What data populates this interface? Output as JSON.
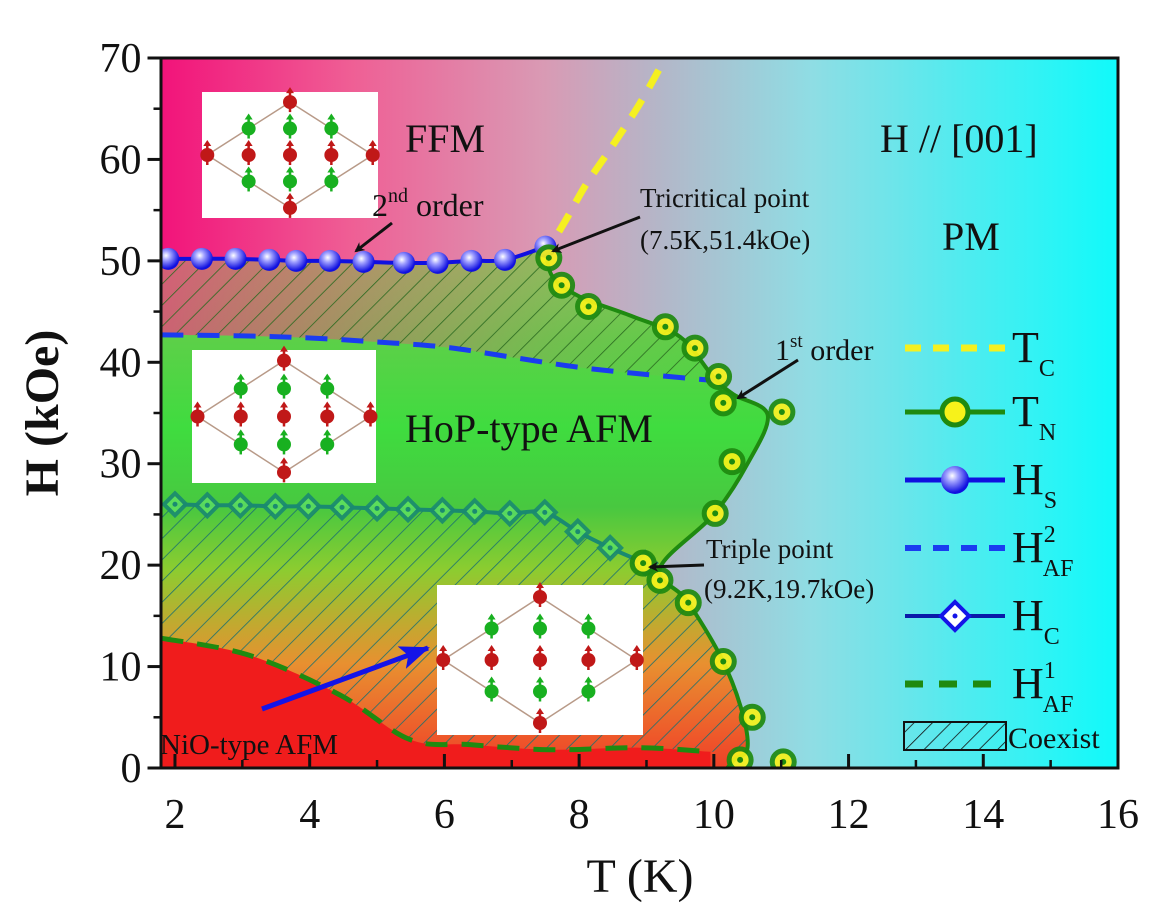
{
  "chart_data": {
    "type": "line",
    "xlabel": "T (K)",
    "ylabel": "H (kOe)",
    "xlim": [
      1.8,
      16
    ],
    "ylim": [
      0,
      70
    ],
    "xticks": [
      2,
      4,
      6,
      8,
      10,
      12,
      14,
      16
    ],
    "yticks": [
      0,
      10,
      20,
      30,
      40,
      50,
      60,
      70
    ],
    "grid": false,
    "legend_placement": "right",
    "colors": {
      "T_C": "#f5f020",
      "T_N_edge": "#1f8a10",
      "T_N_fill": "#f7f21a",
      "H_S": "#1010e0",
      "H_AF2": "#1a3cf0",
      "H_C": "#0a1aa8",
      "H_AF1": "#1f8a10",
      "background_left": "#f2137a",
      "background_right": "#10fafa",
      "NiO_region": "#f01c1c",
      "HoP_region": "#3fdc3f"
    },
    "series": [
      {
        "key": "T_C",
        "name": "T",
        "sub": "C",
        "style": "dashed",
        "x": [
          7.44,
          7.8,
          8.1,
          8.46,
          8.9,
          9.28
        ],
        "y": [
          50,
          54,
          57.5,
          61,
          65.5,
          70
        ]
      },
      {
        "key": "T_N",
        "name": "T",
        "sub": "N",
        "style": "line+circle",
        "x": [
          7.55,
          7.74,
          8.14,
          9.28,
          9.72,
          10.07,
          10.14,
          11.01,
          10.27,
          10.02,
          8.95,
          9.2,
          9.62,
          10.14,
          10.57,
          10.39,
          11.03
        ],
        "y": [
          50.3,
          47.6,
          45.5,
          43.5,
          41.4,
          38.6,
          36.0,
          35.1,
          30.2,
          25.1,
          20.2,
          18.5,
          16.3,
          10.5,
          5.0,
          0.8,
          0.6
        ]
      },
      {
        "key": "H_S",
        "name": "H",
        "sub": "S",
        "style": "line+sphere",
        "x": [
          1.9,
          2.4,
          2.9,
          3.4,
          3.8,
          4.3,
          4.8,
          5.4,
          5.9,
          6.4,
          6.9,
          7.5
        ],
        "y": [
          50.2,
          50.2,
          50.2,
          50.1,
          50.0,
          50.0,
          49.9,
          49.8,
          49.8,
          50.0,
          50.1,
          51.4
        ]
      },
      {
        "key": "H_AF2",
        "name": "H",
        "sup": "2",
        "sub": "AF",
        "style": "dashed",
        "x": [
          1.8,
          3,
          4,
          5,
          6,
          7,
          8,
          9,
          10
        ],
        "y": [
          42.7,
          42.6,
          42.4,
          42.0,
          41.5,
          40.5,
          39.5,
          38.8,
          38.2
        ]
      },
      {
        "key": "H_C",
        "name": "H",
        "sub": "C",
        "style": "line+diamond",
        "x": [
          2.0,
          2.48,
          2.97,
          3.49,
          3.98,
          4.48,
          5.0,
          5.46,
          5.97,
          6.45,
          6.97,
          7.49,
          7.98,
          8.46,
          8.98
        ],
        "y": [
          26.0,
          25.9,
          25.9,
          25.8,
          25.8,
          25.7,
          25.6,
          25.5,
          25.4,
          25.3,
          25.1,
          25.2,
          23.3,
          21.7,
          20.2
        ]
      },
      {
        "key": "H_AF1",
        "name": "H",
        "sup": "1",
        "sub": "AF",
        "style": "dashed",
        "x": [
          1.8,
          3.11,
          4.45,
          5.49,
          6.38,
          7.57,
          8.9,
          9.95
        ],
        "y": [
          12.8,
          11.1,
          7.2,
          2.8,
          2.3,
          1.8,
          2.0,
          1.6
        ]
      }
    ],
    "phase_boundary": {
      "x": [
        7.5,
        7.6,
        8.0,
        8.8,
        9.5,
        10.0,
        10.3,
        10.8,
        10.5,
        10.0,
        9.2,
        9.6,
        10.1,
        10.4,
        10.5,
        10.3,
        10.2
      ],
      "y": [
        51.4,
        48.5,
        46.5,
        44.5,
        42.5,
        38.5,
        36.8,
        34.8,
        30,
        25,
        19.7,
        16.5,
        11,
        6,
        2,
        0.8,
        0
      ]
    },
    "legend": {
      "T_C": {
        "main": "T",
        "sub": "C"
      },
      "T_N": {
        "main": "T",
        "sub": "N"
      },
      "H_S": {
        "main": "H",
        "sub": "S"
      },
      "H_AF2": {
        "main": "H",
        "sup": "2",
        "sub": "AF"
      },
      "H_C": {
        "main": "H",
        "sub": "C"
      },
      "H_AF1": {
        "main": "H",
        "sup": "1",
        "sub": "AF"
      },
      "coexist": "Coexist"
    },
    "annotations": {
      "ffm": "FFM",
      "field_direction": "H // [001]",
      "pm": "PM",
      "second_order": {
        "num": "2",
        "sup": "nd",
        "text": "order"
      },
      "tricritical_label": "Tricritical point",
      "tricritical_value": "(7.5K,51.4kOe)",
      "first_order": {
        "num": "1",
        "sup": "st",
        "text": "order"
      },
      "hop": "HoP-type AFM",
      "triple_label": "Triple point",
      "triple_value": "(9.2K,19.7kOe)",
      "nio": "NiO-type AFM"
    }
  }
}
